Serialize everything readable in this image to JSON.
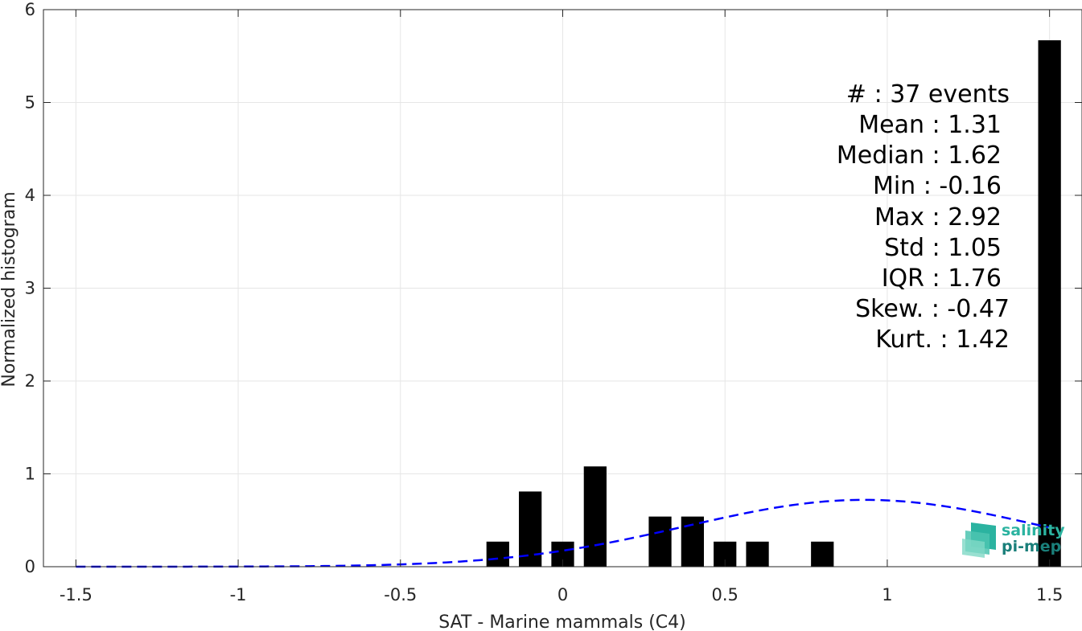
{
  "chart_data": {
    "type": "bar",
    "xlabel": "SAT - Marine mammals (C4)",
    "ylabel": "Normalized histogram",
    "xlim": [
      -1.6,
      1.6
    ],
    "ylim": [
      0,
      6
    ],
    "xticks": [
      -1.5,
      -1,
      -0.5,
      0,
      0.5,
      1,
      1.5
    ],
    "xtick_labels": [
      "-1.5",
      "-1",
      "-0.5",
      "0",
      "0.5",
      "1",
      "1.5"
    ],
    "yticks": [
      0,
      1,
      2,
      3,
      4,
      5,
      6
    ],
    "ytick_labels": [
      "0",
      "1",
      "2",
      "3",
      "4",
      "5",
      "6"
    ],
    "grid": true,
    "bar_width": 0.07,
    "bars": [
      {
        "x": -0.2,
        "y": 0.27
      },
      {
        "x": -0.1,
        "y": 0.81
      },
      {
        "x": 0.0,
        "y": 0.27
      },
      {
        "x": 0.1,
        "y": 1.08
      },
      {
        "x": 0.3,
        "y": 0.54
      },
      {
        "x": 0.4,
        "y": 0.54
      },
      {
        "x": 0.5,
        "y": 0.27
      },
      {
        "x": 0.6,
        "y": 0.27
      },
      {
        "x": 0.8,
        "y": 0.27
      },
      {
        "x": 1.5,
        "y": 5.67
      }
    ],
    "bar_color": "#000000",
    "fit_curve": {
      "style": "dashed",
      "color": "#0000ff",
      "mean": 0.93,
      "std": 0.55,
      "amplitude": 0.72,
      "x_range": [
        -1.5,
        1.5
      ]
    },
    "stats_lines": [
      "#  : 37 events",
      "Mean : 1.31",
      "Median : 1.62",
      "Min : -0.16",
      "Max : 2.92",
      "Std : 1.05",
      "IQR : 1.76",
      "Skew. : -0.47",
      "Kurt. : 1.42"
    ]
  },
  "logo": {
    "line1": "salinity",
    "line2": "pi-mep",
    "color1": "#2bb3a0",
    "color2": "#1a7f7a"
  }
}
